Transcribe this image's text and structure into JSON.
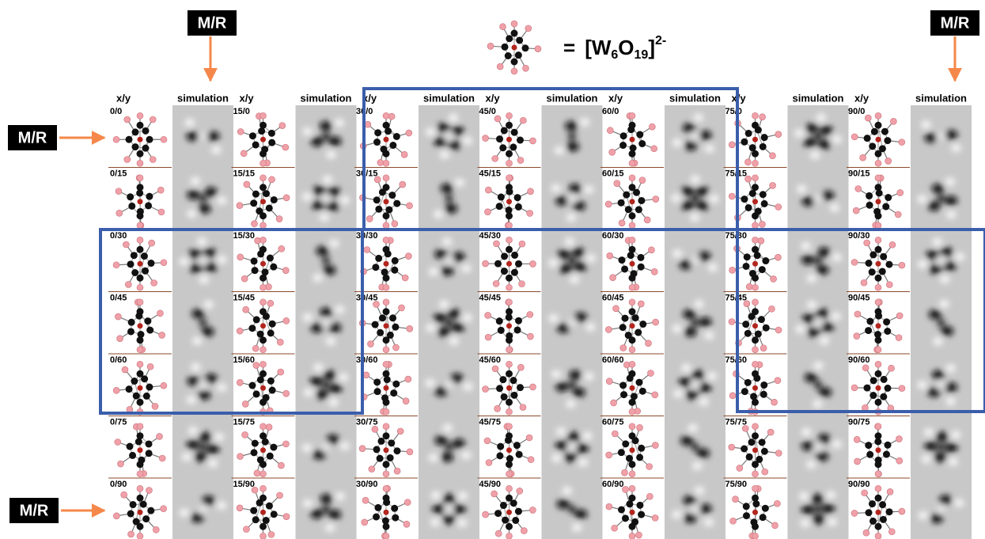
{
  "mr_labels": [
    "M/R",
    "M/R",
    "M/R",
    "M/R"
  ],
  "formula": {
    "equals": "=",
    "open": "[W",
    "sub1": "6",
    "mid": "O",
    "sub2": "19",
    "close": "]",
    "charge": "2-"
  },
  "headers": [
    {
      "xy": "x/y",
      "simulation": "simulation"
    },
    {
      "xy": "x/y",
      "simulation": "simulation"
    },
    {
      "xy": "x/y",
      "simulation": "simulation"
    },
    {
      "xy": "x/y",
      "simulation": "simulation"
    },
    {
      "xy": "x/y",
      "simulation": "simulation"
    },
    {
      "xy": "x/y",
      "simulation": "simulation"
    },
    {
      "xy": "x/y",
      "simulation": "simulation"
    }
  ],
  "rows": [
    [
      "0/0",
      "15/0",
      "30/0",
      "45/0",
      "60/0",
      "75/0",
      "90/0"
    ],
    [
      "0/15",
      "15/15",
      "30/15",
      "45/15",
      "60/15",
      "75/15",
      "90/15"
    ],
    [
      "0/30",
      "15/30",
      "30/30",
      "45/30",
      "60/30",
      "75/30",
      "90/30"
    ],
    [
      "0/45",
      "15/45",
      "30/45",
      "45/45",
      "60/45",
      "75/45",
      "90/45"
    ],
    [
      "0/60",
      "15/60",
      "30/60",
      "45/60",
      "60/60",
      "75/60",
      "90/60"
    ],
    [
      "0/75",
      "15/75",
      "30/75",
      "45/75",
      "60/75",
      "75/75",
      "90/75"
    ],
    [
      "0/90",
      "15/90",
      "30/90",
      "45/90",
      "60/90",
      "75/90",
      "90/90"
    ]
  ]
}
